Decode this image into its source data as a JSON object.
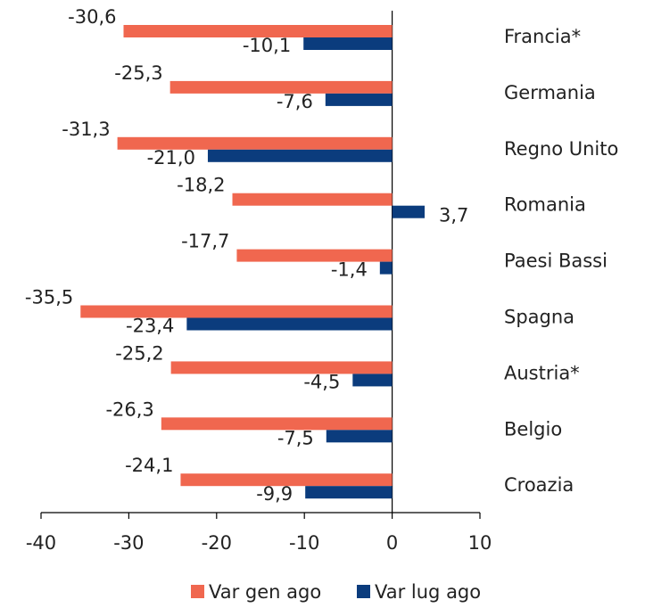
{
  "chart_data": {
    "type": "bar",
    "orientation": "horizontal",
    "categories": [
      "Francia*",
      "Germania",
      "Regno Unito",
      "Romania",
      "Paesi Bassi",
      "Spagna",
      "Austria*",
      "Belgio",
      "Croazia"
    ],
    "series": [
      {
        "name": "Var gen ago",
        "color": "#f0674f",
        "values": [
          -30.6,
          -25.3,
          -31.3,
          -18.2,
          -17.7,
          -35.5,
          -25.2,
          -26.3,
          -24.1
        ],
        "value_labels": [
          "-30,6",
          "-25,3",
          "-31,3",
          "-18,2",
          "-17,7",
          "-35,5",
          "-25,2",
          "-26,3",
          "-24,1"
        ]
      },
      {
        "name": "Var lug ago",
        "color": "#0b3c7d",
        "values": [
          -10.1,
          -7.6,
          -21.0,
          3.7,
          -1.4,
          -23.4,
          -4.5,
          -7.5,
          -9.9
        ],
        "value_labels": [
          "-10,1",
          "-7,6",
          "-21,0",
          "3,7",
          "-1,4",
          "-23,4",
          "-4,5",
          "-7,5",
          "-9,9"
        ]
      }
    ],
    "xlim": [
      -40,
      10
    ],
    "xticks": [
      -40,
      -30,
      -20,
      -10,
      0,
      10
    ],
    "grid": false,
    "legend": "bottom"
  }
}
